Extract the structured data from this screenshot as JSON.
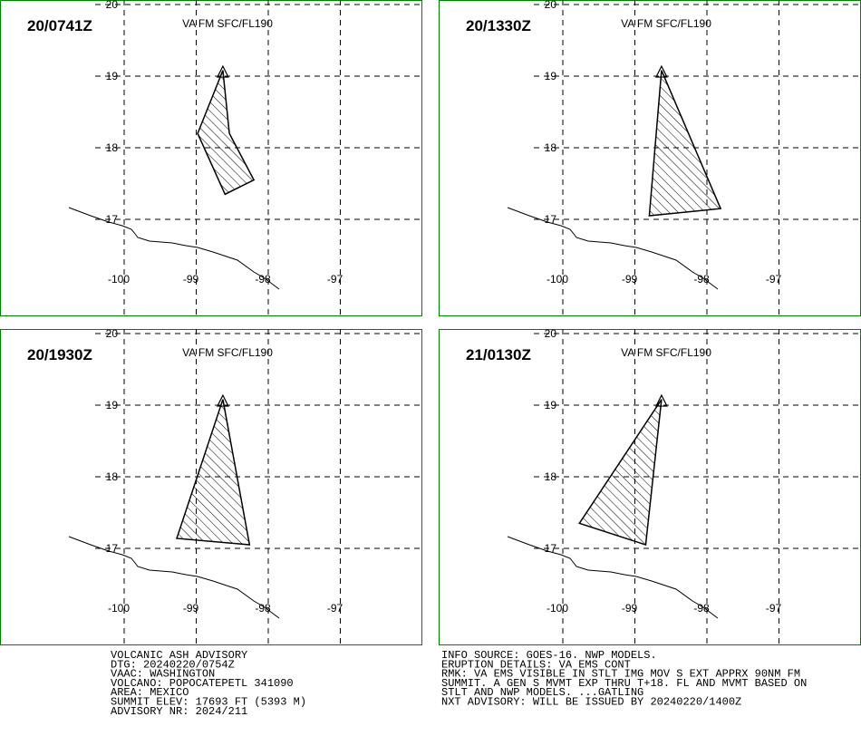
{
  "panels": [
    {
      "time": "20/0741Z",
      "level": "VA FM SFC/FL190",
      "polygon": {
        "lon": [
          -98.63,
          -98.98,
          -98.6,
          -98.2,
          -98.54
        ],
        "lat": [
          19.08,
          18.2,
          17.35,
          17.55,
          18.2
        ]
      }
    },
    {
      "time": "20/1330Z",
      "level": "VA FM SFC/FL190",
      "polygon": {
        "lon": [
          -98.63,
          -98.8,
          -97.81
        ],
        "lat": [
          19.08,
          17.05,
          17.15
        ]
      }
    },
    {
      "time": "20/1930Z",
      "level": "VA FM SFC/FL190",
      "polygon": {
        "lon": [
          -98.63,
          -99.27,
          -98.26
        ],
        "lat": [
          19.08,
          17.14,
          17.05
        ]
      }
    },
    {
      "time": "21/0130Z",
      "level": "VA FM SFC/FL190",
      "polygon": {
        "lon": [
          -98.63,
          -99.77,
          -98.85
        ],
        "lat": [
          19.08,
          17.35,
          17.05
        ]
      }
    }
  ],
  "axes": {
    "lon_ticks": [
      -100,
      -99,
      -98,
      -97
    ],
    "lat_ticks": [
      20,
      19,
      18,
      17
    ]
  },
  "volcano": {
    "lon": -98.63,
    "lat": 19.05
  },
  "advisory": {
    "left": [
      "VOLCANIC ASH ADVISORY",
      "DTG: 20240220/0754Z",
      "VAAC: WASHINGTON",
      "VOLCANO: POPOCATEPETL 341090",
      "AREA: MEXICO",
      "SUMMIT ELEV: 17693 FT (5393 M)",
      "ADVISORY NR: 2024/211"
    ],
    "right": [
      "INFO SOURCE: GOES-16. NWP MODELS.",
      "ERUPTION DETAILS: VA EMS CONT",
      "RMK: VA EMS VISIBLE IN STLT IMG MOV S EXT APPRX 90NM FM",
      "SUMMIT. A GEN S MVMT EXP THRU T+18. FL AND MVMT BASED ON",
      "STLT AND NWP MODELS. ...GATLING",
      "NXT ADVISORY: WILL BE ISSUED BY 20240220/1400Z"
    ]
  }
}
